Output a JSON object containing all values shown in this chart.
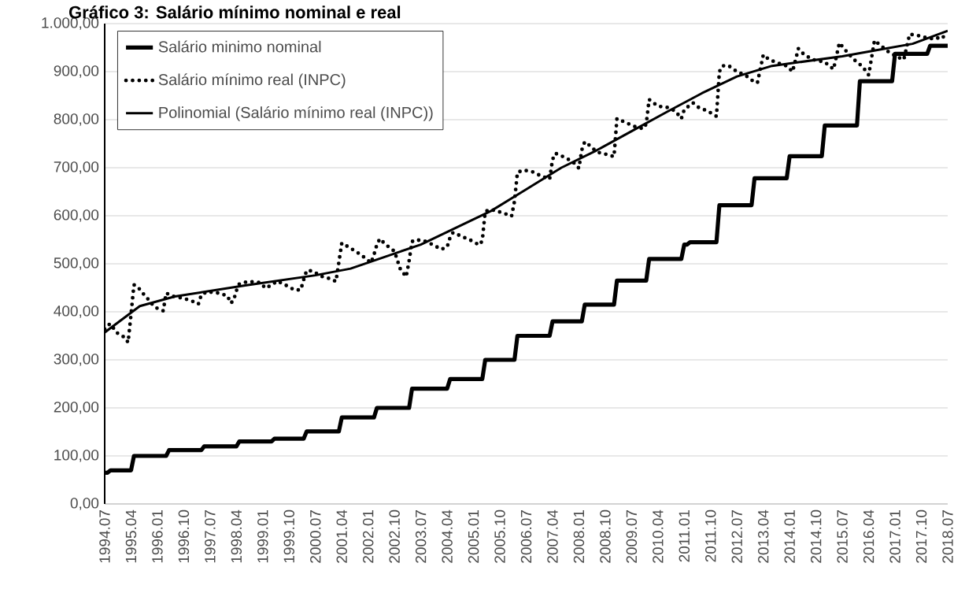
{
  "chart_data": {
    "type": "line",
    "title": "Gráfico 3: Salário mínimo nominal e real",
    "xlim": [
      "1994-07",
      "2018-07"
    ],
    "ylim": [
      0,
      1000
    ],
    "xticks": [
      {
        "value": "1994-07",
        "label": "1994.07"
      },
      {
        "value": "1995-04",
        "label": "1995.04"
      },
      {
        "value": "1996-01",
        "label": "1996.01"
      },
      {
        "value": "1996-10",
        "label": "1996.10"
      },
      {
        "value": "1997-07",
        "label": "1997.07"
      },
      {
        "value": "1998-04",
        "label": "1998.04"
      },
      {
        "value": "1999-01",
        "label": "1999.01"
      },
      {
        "value": "1999-10",
        "label": "1999.10"
      },
      {
        "value": "2000-07",
        "label": "2000.07"
      },
      {
        "value": "2001-04",
        "label": "2001.04"
      },
      {
        "value": "2002-01",
        "label": "2002.01"
      },
      {
        "value": "2002-10",
        "label": "2002.10"
      },
      {
        "value": "2003-07",
        "label": "2003.07"
      },
      {
        "value": "2004-04",
        "label": "2004.04"
      },
      {
        "value": "2005-01",
        "label": "2005.01"
      },
      {
        "value": "2005-10",
        "label": "2005.10"
      },
      {
        "value": "2006-07",
        "label": "2006.07"
      },
      {
        "value": "2007-04",
        "label": "2007.04"
      },
      {
        "value": "2008-01",
        "label": "2008.01"
      },
      {
        "value": "2008-10",
        "label": "2008.10"
      },
      {
        "value": "2009-07",
        "label": "2009.07"
      },
      {
        "value": "2010-04",
        "label": "2010.04"
      },
      {
        "value": "2011-01",
        "label": "2011.01"
      },
      {
        "value": "2011-10",
        "label": "2011.10"
      },
      {
        "value": "2012-07",
        "label": "2012.07"
      },
      {
        "value": "2013-04",
        "label": "2013.04"
      },
      {
        "value": "2014-01",
        "label": "2014.01"
      },
      {
        "value": "2014-10",
        "label": "2014.10"
      },
      {
        "value": "2015-07",
        "label": "2015.07"
      },
      {
        "value": "2016-04",
        "label": "2016.04"
      },
      {
        "value": "2017-01",
        "label": "2017.01"
      },
      {
        "value": "2017-10",
        "label": "2017.10"
      },
      {
        "value": "2018-07",
        "label": "2018.07"
      }
    ],
    "yticks": [
      {
        "value": 0,
        "label": "0,00"
      },
      {
        "value": 100,
        "label": "100,00"
      },
      {
        "value": 200,
        "label": "200,00"
      },
      {
        "value": 300,
        "label": "300,00"
      },
      {
        "value": 400,
        "label": "400,00"
      },
      {
        "value": 500,
        "label": "500,00"
      },
      {
        "value": 600,
        "label": "600,00"
      },
      {
        "value": 700,
        "label": "700,00"
      },
      {
        "value": 800,
        "label": "800,00"
      },
      {
        "value": 900,
        "label": "900,00"
      },
      {
        "value": 1000,
        "label": "1.000,00"
      }
    ],
    "grid": "y",
    "legend": "top left",
    "marker": "none",
    "series": [
      {
        "name": "Salário minimo nominal",
        "color": "#000000",
        "line_style": "solid",
        "x": [
          "1994-07",
          "1994-08",
          "1994-09",
          "1995-04",
          "1995-05",
          "1996-04",
          "1996-05",
          "1997-04",
          "1997-05",
          "1998-04",
          "1998-05",
          "1999-04",
          "1999-05",
          "2000-03",
          "2000-04",
          "2001-03",
          "2001-04",
          "2002-03",
          "2002-04",
          "2003-03",
          "2003-04",
          "2004-04",
          "2004-05",
          "2005-04",
          "2005-05",
          "2006-03",
          "2006-04",
          "2007-03",
          "2007-04",
          "2008-02",
          "2008-03",
          "2009-01",
          "2009-02",
          "2009-12",
          "2010-01",
          "2010-12",
          "2011-01",
          "2011-02",
          "2011-03",
          "2011-12",
          "2012-01",
          "2012-12",
          "2013-01",
          "2013-12",
          "2014-01",
          "2014-12",
          "2015-01",
          "2015-12",
          "2016-01",
          "2016-12",
          "2017-01",
          "2017-12",
          "2018-01",
          "2018-07"
        ],
        "values": [
          65,
          65,
          70,
          70,
          100,
          100,
          112,
          112,
          120,
          120,
          130,
          130,
          136,
          136,
          151,
          151,
          180,
          180,
          200,
          200,
          240,
          240,
          260,
          260,
          300,
          300,
          350,
          350,
          380,
          380,
          415,
          415,
          465,
          465,
          510,
          510,
          540,
          540,
          545,
          545,
          622,
          622,
          678,
          678,
          724,
          724,
          788,
          788,
          880,
          880,
          937,
          937,
          954,
          954
        ]
      },
      {
        "name": "Salário mínimo real (INPC)",
        "color": "#000000",
        "line_style": "dotted",
        "x": [
          "1994-07",
          "1994-08",
          "1994-09",
          "1994-11",
          "1995-02",
          "1995-03",
          "1995-04",
          "1995-05",
          "1995-06",
          "1995-08",
          "1995-10",
          "1995-12",
          "1996-03",
          "1996-04",
          "1996-06",
          "1996-10",
          "1997-01",
          "1997-03",
          "1997-04",
          "1997-06",
          "1997-10",
          "1998-01",
          "1998-02",
          "1998-03",
          "1998-04",
          "1998-05",
          "1998-08",
          "1998-12",
          "1999-02",
          "1999-04",
          "1999-06",
          "1999-09",
          "1999-12",
          "2000-02",
          "2000-03",
          "2000-04",
          "2000-06",
          "2000-09",
          "2000-12",
          "2001-02",
          "2001-03",
          "2001-04",
          "2001-06",
          "2001-09",
          "2001-12",
          "2002-02",
          "2002-03",
          "2002-04",
          "2002-05",
          "2002-07",
          "2002-10",
          "2002-11",
          "2002-12",
          "2003-02",
          "2003-03",
          "2003-04",
          "2003-05",
          "2003-08",
          "2003-11",
          "2004-02",
          "2004-04",
          "2004-05",
          "2004-06",
          "2004-09",
          "2004-12",
          "2005-03",
          "2005-04",
          "2005-05",
          "2005-07",
          "2005-11",
          "2006-02",
          "2006-03",
          "2006-04",
          "2006-06",
          "2006-09",
          "2006-12",
          "2007-03",
          "2007-04",
          "2007-05",
          "2007-08",
          "2007-11",
          "2008-01",
          "2008-02",
          "2008-03",
          "2008-05",
          "2008-07",
          "2008-11",
          "2009-01",
          "2009-02",
          "2009-05",
          "2009-08",
          "2009-11",
          "2009-12",
          "2010-01",
          "2010-04",
          "2010-07",
          "2010-10",
          "2010-12",
          "2011-01",
          "2011-04",
          "2011-06",
          "2011-09",
          "2011-12",
          "2012-01",
          "2012-02",
          "2012-04",
          "2012-07",
          "2012-10",
          "2013-01",
          "2013-02",
          "2013-04",
          "2013-06",
          "2013-09",
          "2013-12",
          "2014-02",
          "2014-04",
          "2014-06",
          "2014-09",
          "2015-01",
          "2015-04",
          "2015-06",
          "2015-08",
          "2015-11",
          "2016-02",
          "2016-04",
          "2016-06",
          "2016-08",
          "2016-11",
          "2017-02",
          "2017-04",
          "2017-06",
          "2017-09",
          "2017-12",
          "2018-03",
          "2018-05",
          "2018-07"
        ],
        "values": [
          364,
          372,
          375,
          357,
          346,
          336,
          395,
          456,
          454,
          439,
          425,
          410,
          402,
          439,
          433,
          428,
          422,
          416,
          435,
          442,
          439,
          433,
          418,
          423,
          444,
          458,
          463,
          461,
          449,
          456,
          464,
          455,
          445,
          446,
          467,
          486,
          485,
          474,
          469,
          463,
          503,
          543,
          536,
          525,
          512,
          502,
          519,
          540,
          552,
          540,
          526,
          507,
          489,
          473,
          506,
          546,
          550,
          548,
          540,
          530,
          535,
          555,
          565,
          557,
          549,
          539,
          548,
          609,
          613,
          606,
          599,
          630,
          690,
          695,
          692,
          683,
          676,
          717,
          730,
          722,
          712,
          699,
          737,
          754,
          745,
          733,
          727,
          723,
          802,
          794,
          786,
          781,
          791,
          842,
          828,
          826,
          818,
          802,
          821,
          835,
          825,
          818,
          807,
          900,
          912,
          913,
          900,
          892,
          878,
          877,
          935,
          925,
          918,
          912,
          900,
          948,
          935,
          925,
          920,
          905,
          960,
          945,
          925,
          910,
          893,
          965,
          955,
          940,
          930,
          925,
          978,
          975,
          970,
          968,
          975,
          965
        ]
      },
      {
        "name": "Polinomial (Salário mínimo real (INPC))",
        "color": "#000000",
        "line_style": "solid",
        "x": [
          "1994-07",
          "1995-07",
          "1996-07",
          "1998-07",
          "2000-07",
          "2001-07",
          "2002-07",
          "2003-07",
          "2004-07",
          "2005-07",
          "2006-07",
          "2007-07",
          "2008-07",
          "2009-07",
          "2010-07",
          "2011-07",
          "2012-07",
          "2013-07",
          "2014-07",
          "2015-07",
          "2016-07",
          "2017-07",
          "2018-07"
        ],
        "values": [
          357,
          412,
          432,
          455,
          476,
          490,
          515,
          540,
          575,
          610,
          655,
          700,
          736,
          776,
          816,
          855,
          890,
          912,
          922,
          932,
          945,
          958,
          985
        ]
      }
    ]
  }
}
